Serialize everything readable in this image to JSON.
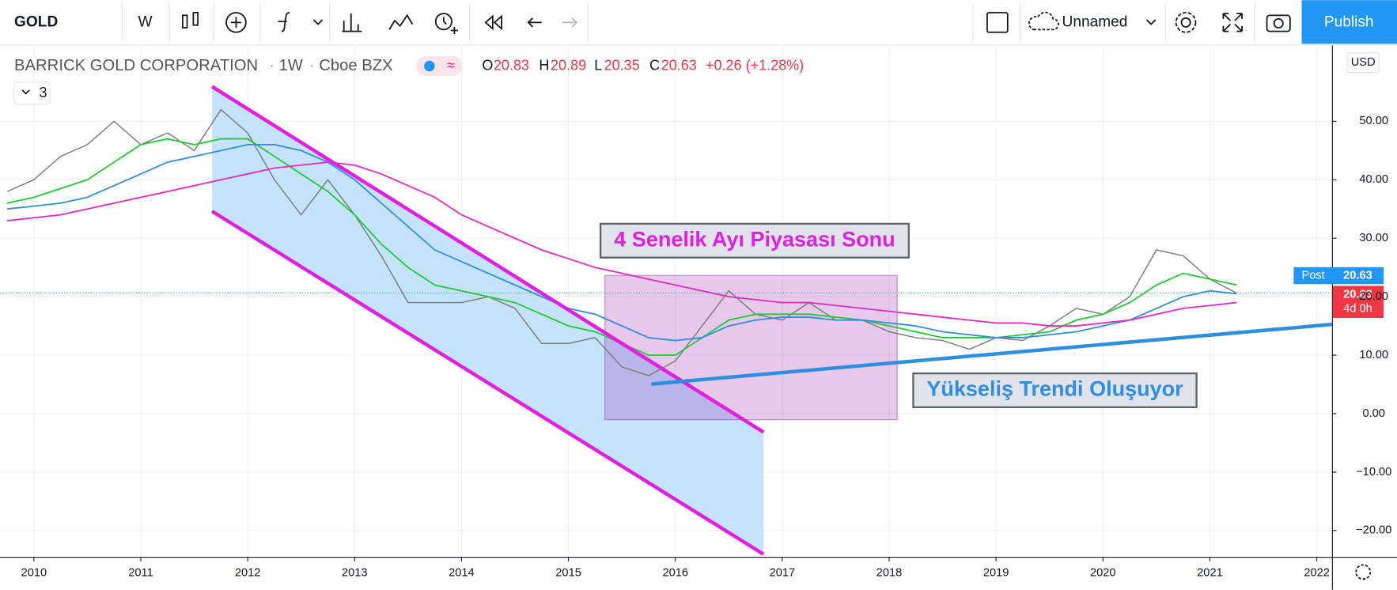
{
  "toolbar": {
    "symbol": "GOLD",
    "interval": "W",
    "layout_name": "Unnamed",
    "publish": "Publish"
  },
  "chart_data": {
    "type": "line",
    "legend": {
      "name": "BARRICK GOLD CORPORATION",
      "interval": "1W",
      "exchange": "Cboe BZX",
      "open_label": "O",
      "open": "20.83",
      "high_label": "H",
      "high": "20.89",
      "low_label": "L",
      "low": "20.35",
      "close_label": "C",
      "close": "20.63",
      "change": "+0.26 (+1.28%)",
      "indicators": "3"
    },
    "currency": "USD",
    "x": [
      2009.75,
      2010,
      2010.25,
      2010.5,
      2010.75,
      2011,
      2011.25,
      2011.5,
      2011.75,
      2012,
      2012.25,
      2012.5,
      2012.75,
      2013,
      2013.25,
      2013.5,
      2013.75,
      2014,
      2014.25,
      2014.5,
      2014.75,
      2015,
      2015.25,
      2015.5,
      2015.75,
      2016,
      2016.25,
      2016.5,
      2016.75,
      2017,
      2017.25,
      2017.5,
      2017.75,
      2018,
      2018.25,
      2018.5,
      2018.75,
      2019,
      2019.25,
      2019.5,
      2019.75,
      2020,
      2020.25,
      2020.5,
      2020.75,
      2021,
      2021.25
    ],
    "series": [
      {
        "color": "#7c7c7c",
        "values": [
          38,
          40,
          44,
          46,
          50,
          46,
          48,
          45,
          52,
          48,
          40,
          34,
          40,
          34,
          27,
          19,
          19,
          19,
          20,
          18,
          12,
          12,
          13,
          8,
          6.5,
          9,
          15,
          21,
          17,
          16,
          19,
          16,
          16,
          14,
          13,
          12.5,
          11,
          13,
          12.5,
          15,
          18,
          17,
          20,
          28,
          27,
          23,
          20.63
        ]
      },
      {
        "color": "#22c937",
        "values": [
          36,
          37,
          38.5,
          40,
          43,
          46,
          47,
          46,
          47,
          47,
          44,
          41,
          38,
          34,
          29,
          25,
          22,
          21,
          20,
          19,
          17,
          15,
          14,
          12,
          10,
          10,
          13,
          16,
          17,
          17,
          17,
          16.5,
          16,
          15,
          14,
          13,
          13,
          13,
          13.5,
          14,
          16,
          17,
          19,
          22,
          24,
          23,
          22
        ]
      },
      {
        "color": "#2f8ee0",
        "values": [
          35,
          35.5,
          36,
          37,
          39,
          41,
          43,
          44,
          45,
          46,
          46,
          45,
          43,
          40,
          36,
          32,
          28,
          26,
          24,
          22,
          20,
          18,
          17,
          15,
          13,
          12.5,
          13,
          15,
          16,
          16.5,
          16.5,
          16,
          16,
          15.5,
          15,
          14,
          13.5,
          13,
          13,
          13.5,
          14,
          15,
          16,
          18,
          20,
          21,
          20.5
        ]
      },
      {
        "color": "#e52bbf",
        "values": [
          33,
          33.5,
          34,
          35,
          36,
          37,
          38,
          39,
          40,
          41,
          42,
          42.5,
          43,
          42.5,
          41,
          39,
          37,
          34,
          32,
          30,
          28,
          26.5,
          25,
          24,
          23,
          22,
          21,
          20,
          19.5,
          19,
          19,
          18.5,
          18,
          17.5,
          17,
          16.5,
          16,
          15.5,
          15.5,
          15,
          15,
          15.5,
          16,
          17,
          18,
          18.5,
          19
        ]
      }
    ],
    "xlim": [
      2009.683,
      2022.142
    ],
    "xticks": [
      2010,
      2011,
      2012,
      2013,
      2014,
      2015,
      2016,
      2017,
      2018,
      2019,
      2020,
      2021,
      2022
    ],
    "ylim": [
      -24.5,
      63.1
    ],
    "yticks": [
      {
        "value": -20,
        "label": "−20.00"
      },
      {
        "value": -10,
        "label": "−10.00"
      },
      {
        "value": 0,
        "label": "0.00"
      },
      {
        "value": 10,
        "label": "10.00"
      },
      {
        "value": 20,
        "label": "20.00"
      },
      {
        "value": 30,
        "label": "30.00"
      },
      {
        "value": 40,
        "label": "40.00"
      },
      {
        "value": 50,
        "label": "50.00"
      }
    ],
    "grid": true,
    "last_price": 20.63,
    "post_label": "Post",
    "countdown": "4d 0h",
    "annotations": [
      "4 Senelik Ayı Piyasası Sonu",
      "Yükseliş Trendi Oluşuyor"
    ]
  }
}
